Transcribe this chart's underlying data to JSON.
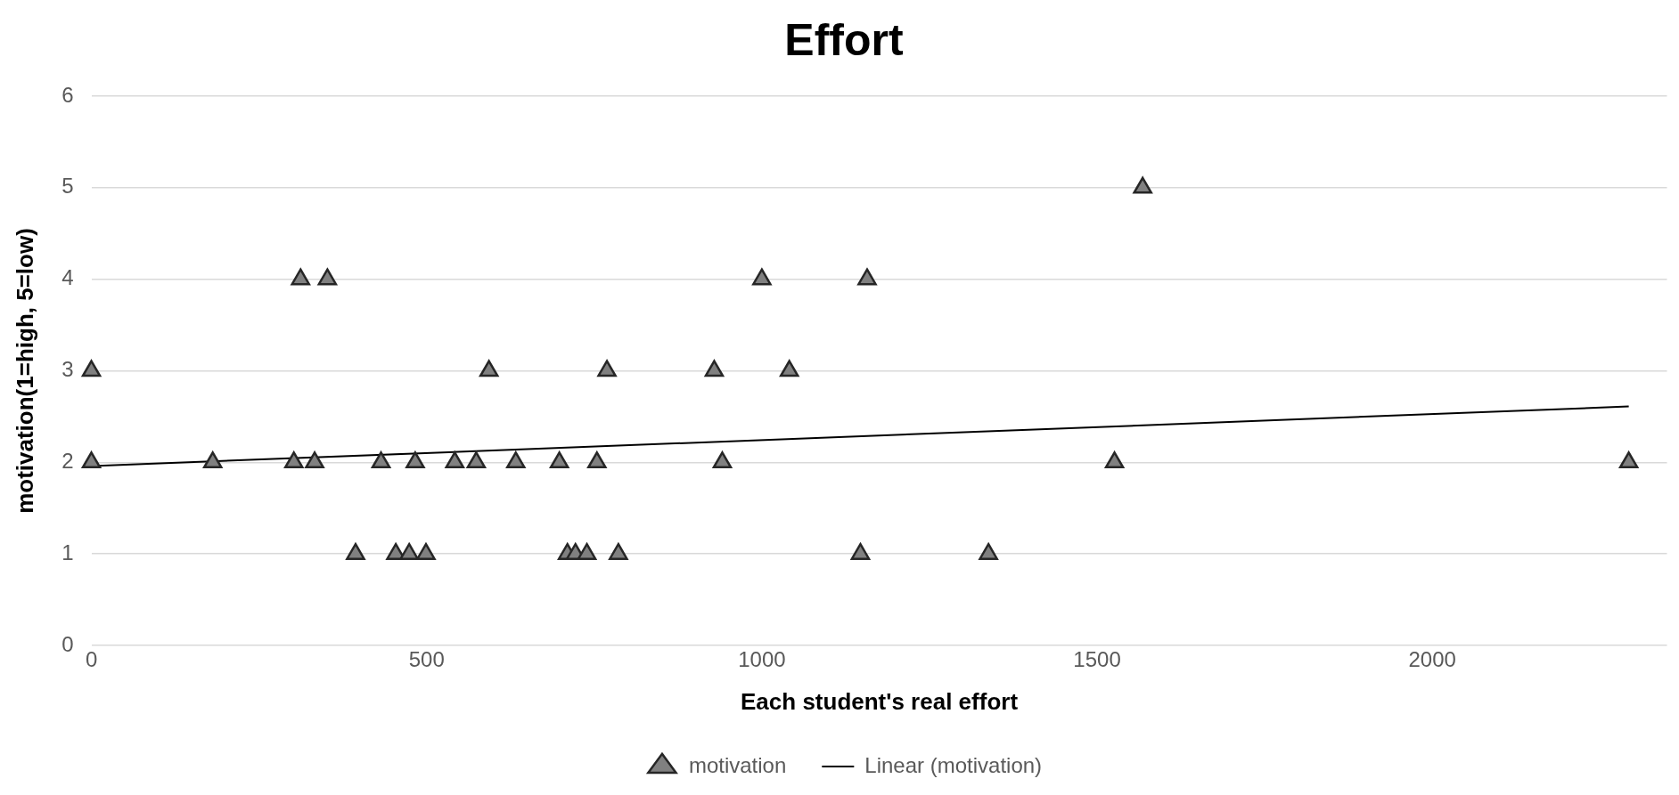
{
  "chart_data": {
    "type": "scatter",
    "title": "Effort",
    "xlabel": "Each student's real effort",
    "ylabel": "motivation(1=high, 5=low)",
    "xlim": [
      0,
      2350
    ],
    "xticks": [
      0,
      500,
      1000,
      1500,
      2000
    ],
    "ylim": [
      0,
      6
    ],
    "yticks": [
      0,
      1,
      2,
      3,
      4,
      5,
      6
    ],
    "grid": "y",
    "legend": "bottom",
    "series": [
      {
        "name": "motivation",
        "type": "scatter",
        "marker": "triangle",
        "color": "#808080",
        "x": [
          0,
          593,
          769,
          929,
          1041,
          0,
          181,
          302,
          333,
          432,
          483,
          542,
          574,
          633,
          698,
          754,
          941,
          1526,
          2293,
          312,
          352,
          1000,
          1157,
          1568,
          394,
          454,
          474,
          499,
          710,
          722,
          739,
          786,
          1147,
          1338
        ],
        "values": [
          3,
          3,
          3,
          3,
          3,
          2,
          2,
          2,
          2,
          2,
          2,
          2,
          2,
          2,
          2,
          2,
          2,
          2,
          2,
          4,
          4,
          4,
          4,
          5,
          1,
          1,
          1,
          1,
          1,
          1,
          1,
          1,
          1,
          1
        ]
      },
      {
        "name": "Linear (motivation)",
        "type": "line",
        "marker": "none",
        "color": "#000000",
        "x": [
          0,
          2293
        ],
        "values": [
          1.96,
          2.61
        ]
      }
    ]
  }
}
